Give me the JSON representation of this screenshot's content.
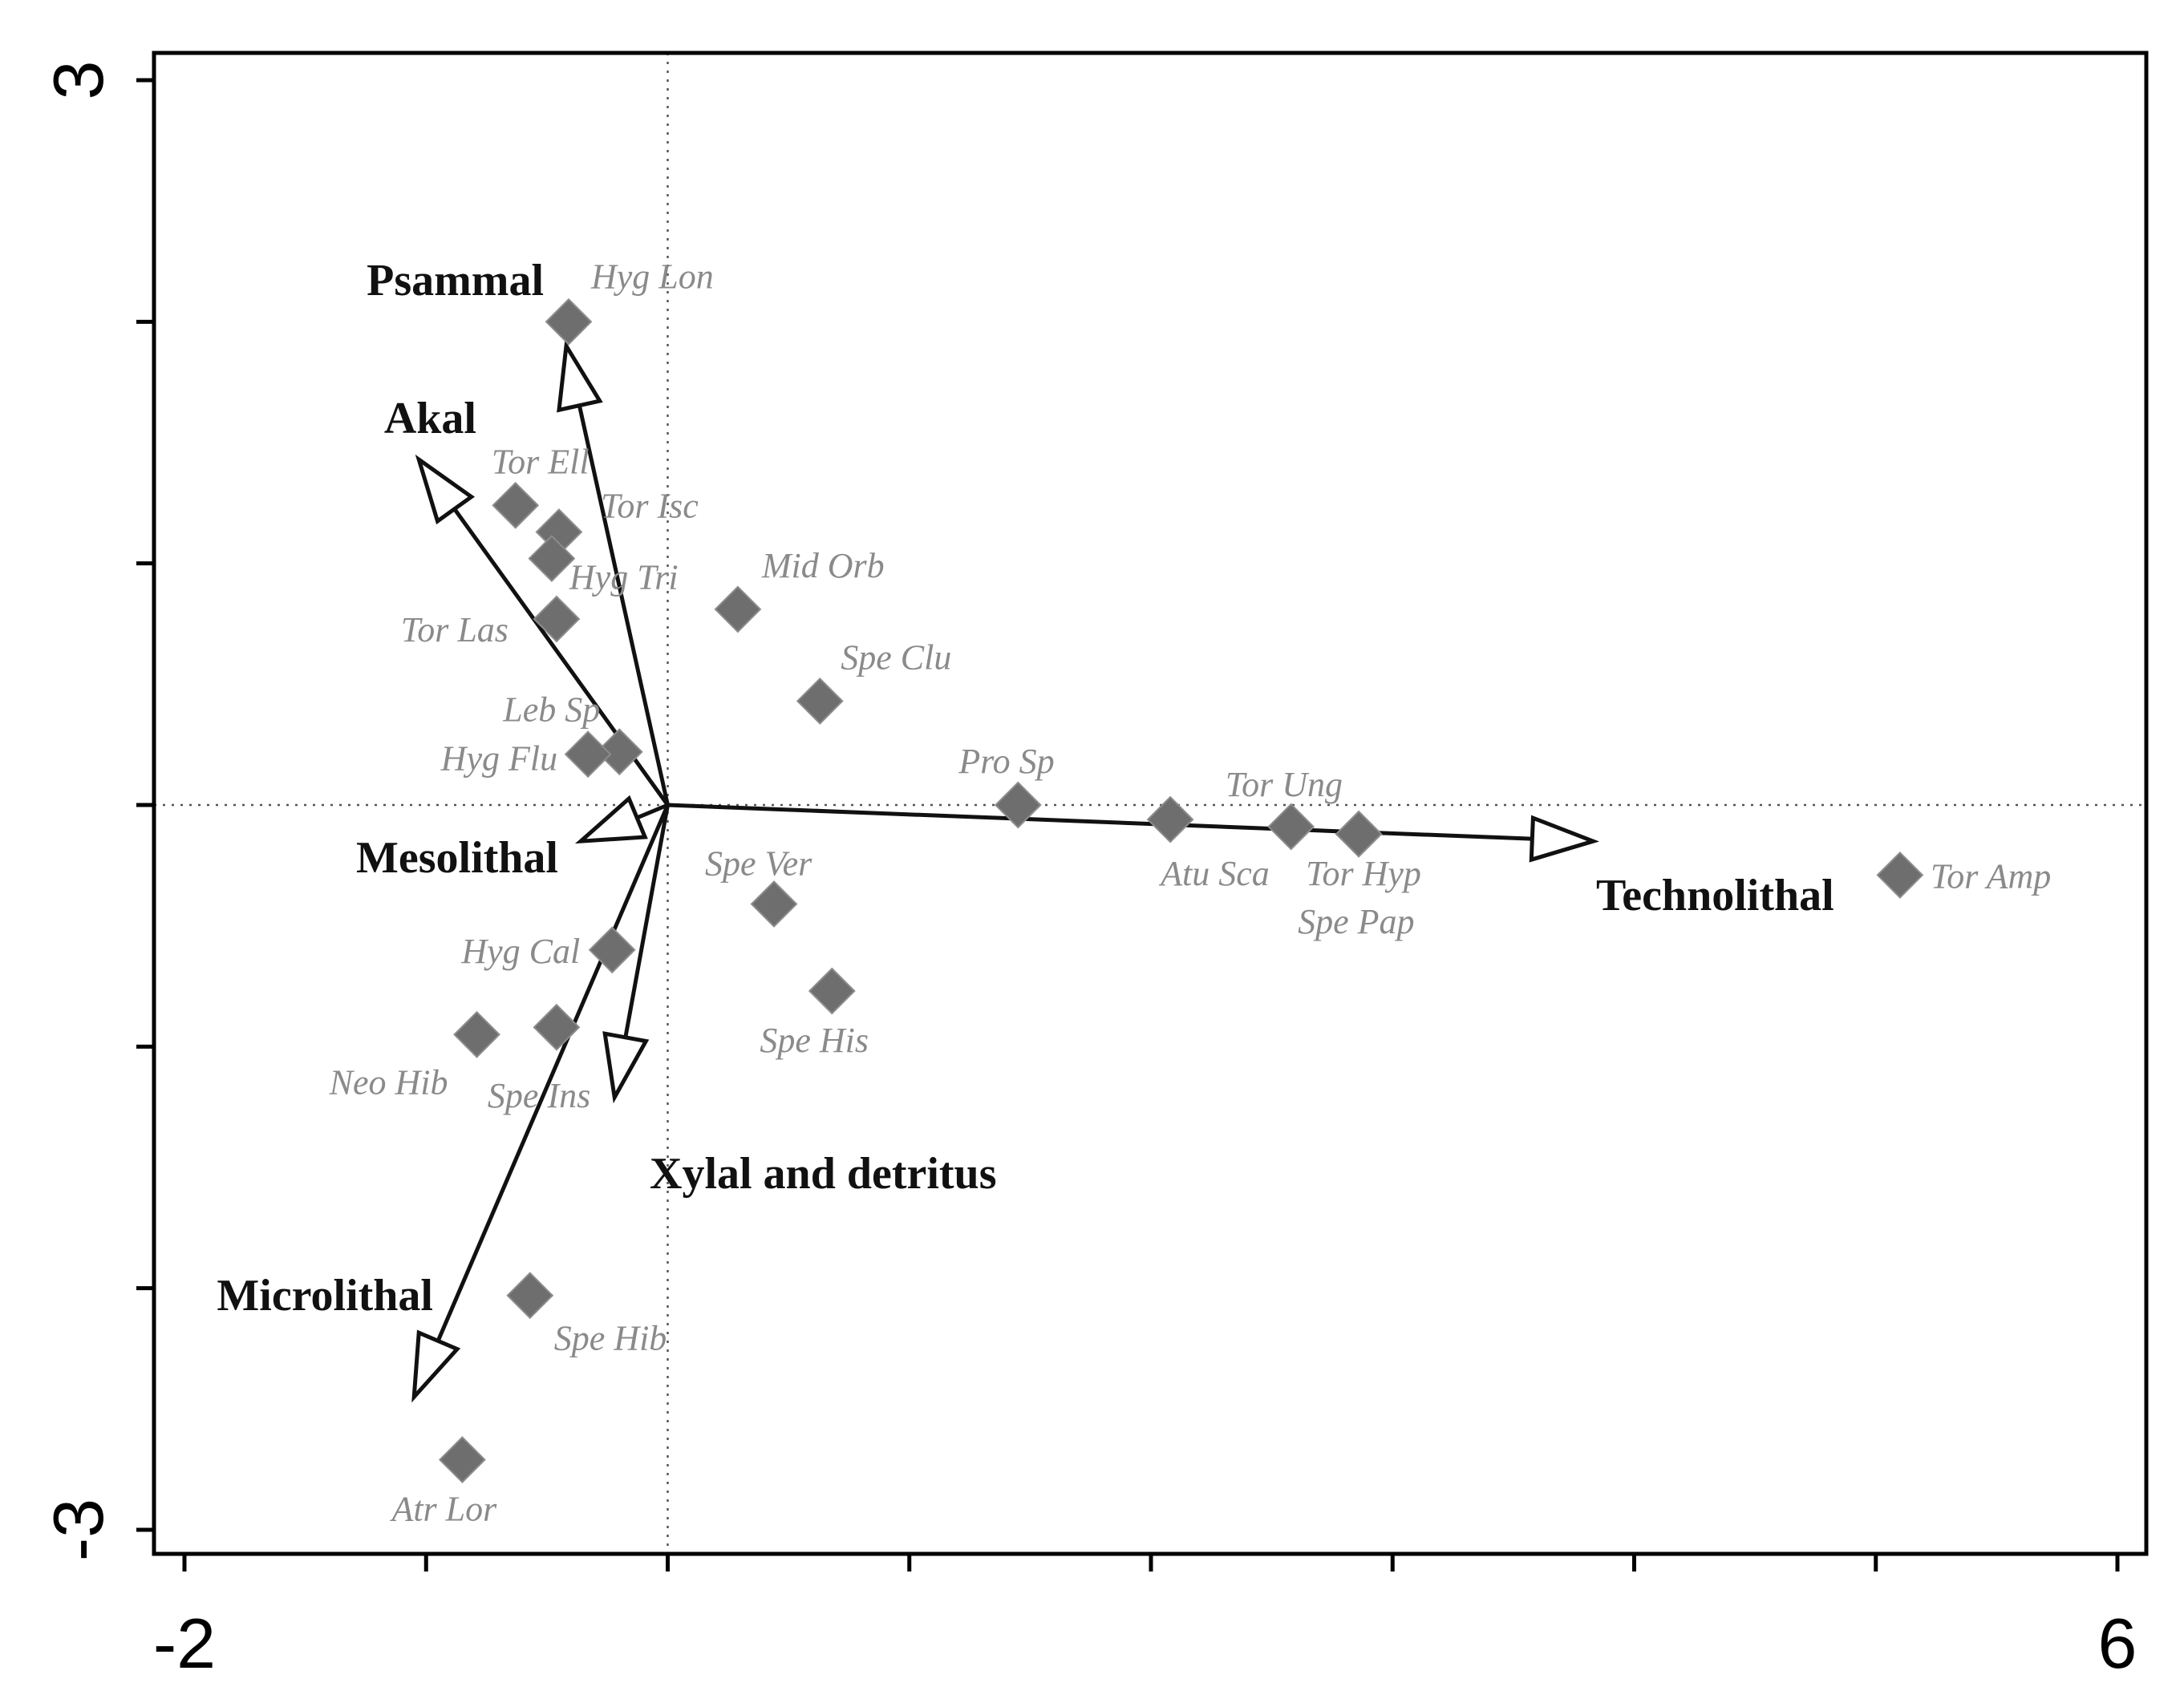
{
  "chart_data": {
    "type": "scatter",
    "title": "",
    "xlabel": "",
    "ylabel": "",
    "xlim": [
      -2,
      6
    ],
    "ylim": [
      -3,
      3
    ],
    "x_tick_labels": [
      "-2",
      "6"
    ],
    "y_tick_labels": [
      "3",
      "-3"
    ],
    "grid": false,
    "species": [
      {
        "label": "Hyg Lon",
        "x": -0.41,
        "y": 2.0
      },
      {
        "label": "Tor Ell",
        "x": -0.63,
        "y": 1.24
      },
      {
        "label": "Tor Isc",
        "x": -0.45,
        "y": 1.13
      },
      {
        "label": "Hyg Tri",
        "x": -0.48,
        "y": 1.02
      },
      {
        "label": "Tor Las",
        "x": -0.46,
        "y": 0.77
      },
      {
        "label": "Mid Orb",
        "x": 0.29,
        "y": 0.81
      },
      {
        "label": "Spe Clu",
        "x": 0.63,
        "y": 0.43
      },
      {
        "label": "Leb Sp",
        "x": -0.2,
        "y": 0.22
      },
      {
        "label": "Hyg Flu",
        "x": -0.33,
        "y": 0.21
      },
      {
        "label": "Pro Sp",
        "x": 1.45,
        "y": 0.0
      },
      {
        "label": "Atu Sca",
        "x": 2.08,
        "y": -0.06
      },
      {
        "label": "Tor Ung",
        "x": 2.58,
        "y": -0.09
      },
      {
        "label": "Tor Hyp",
        "x": 2.86,
        "y": -0.12
      },
      {
        "label": "Spe Pap",
        "x": 2.86,
        "y": -0.12
      },
      {
        "label": "Tor Amp",
        "x": 5.1,
        "y": -0.29
      },
      {
        "label": "Spe Ver",
        "x": 0.44,
        "y": -0.41
      },
      {
        "label": "Spe His",
        "x": 0.68,
        "y": -0.77
      },
      {
        "label": "Hyg Cal",
        "x": -0.23,
        "y": -0.6
      },
      {
        "label": "Spe Ins",
        "x": -0.46,
        "y": -0.92
      },
      {
        "label": "Neo Hib",
        "x": -0.79,
        "y": -0.95
      },
      {
        "label": "Spe Hib",
        "x": -0.57,
        "y": -2.03
      },
      {
        "label": "Atr Lor",
        "x": -0.85,
        "y": -2.71
      }
    ],
    "environmental_vectors": [
      {
        "label": "Psammal",
        "x": -0.42,
        "y": 1.9
      },
      {
        "label": "Akal",
        "x": -1.03,
        "y": 1.43
      },
      {
        "label": "Mesolithal",
        "x": -0.36,
        "y": -0.15
      },
      {
        "label": "Xylal and detritus",
        "x": -0.22,
        "y": -1.21
      },
      {
        "label": "Microlithal",
        "x": -1.05,
        "y": -2.45
      },
      {
        "label": "Technolithal",
        "x": 3.83,
        "y": -0.15
      }
    ],
    "colors": {
      "marker": "#6e6e6e",
      "species_label": "#8a8a8a",
      "vector": "#111111"
    }
  }
}
